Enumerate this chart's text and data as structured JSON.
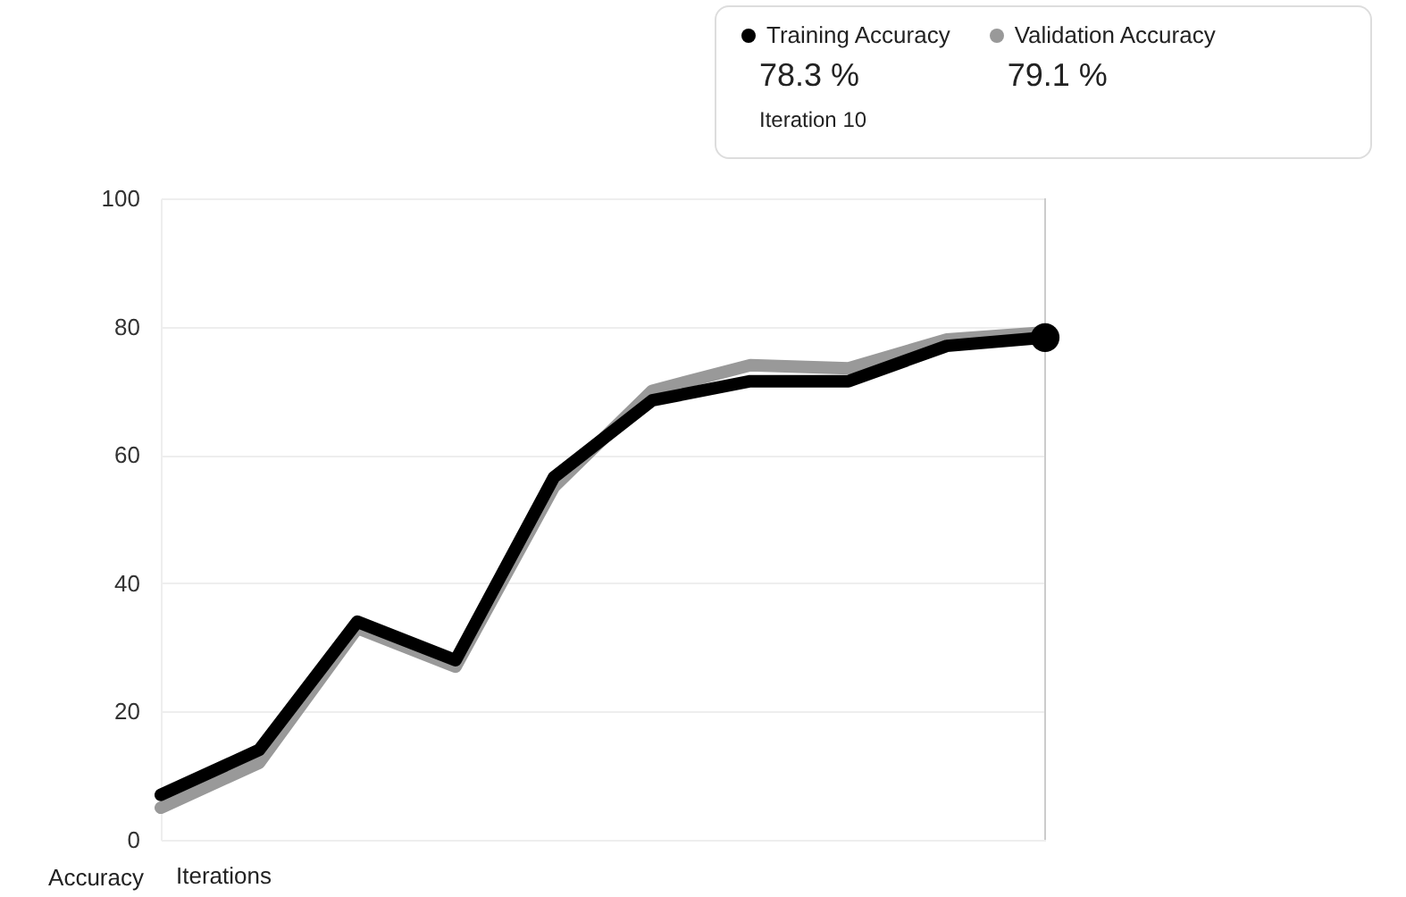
{
  "chart_data": {
    "type": "line",
    "xlabel": "Iterations",
    "ylabel": "Accuracy",
    "categories": [
      null,
      null,
      null,
      null,
      null,
      null,
      null,
      null,
      null,
      null
    ],
    "series": [
      {
        "name": "Validation Accuracy",
        "color": "#999999",
        "values": [
          5,
          12,
          33,
          27,
          55,
          70,
          74,
          73.5,
          78,
          79.1
        ]
      },
      {
        "name": "Training Accuracy",
        "color": "#000000",
        "values": [
          7,
          14,
          34,
          28,
          56.5,
          68.5,
          71.5,
          71.5,
          77,
          78.3
        ]
      }
    ],
    "ylim": [
      0,
      100
    ],
    "yticks": [
      0,
      20,
      40,
      60,
      80,
      100
    ],
    "grid": "y",
    "legend": "top right",
    "tick_labels": "y",
    "line_style": "solid",
    "annotations": [
      "79.1 %",
      "78.3 %",
      "Iteration 10"
    ]
  }
}
